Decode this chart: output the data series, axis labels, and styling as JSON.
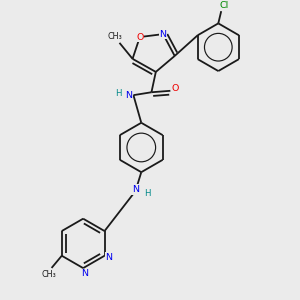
{
  "background_color": "#ebebeb",
  "bond_color": "#1a1a1a",
  "atom_colors": {
    "N": "#0000ee",
    "O": "#ee0000",
    "Cl": "#008800",
    "H": "#008888"
  },
  "figsize": [
    3.0,
    3.0
  ],
  "dpi": 100
}
